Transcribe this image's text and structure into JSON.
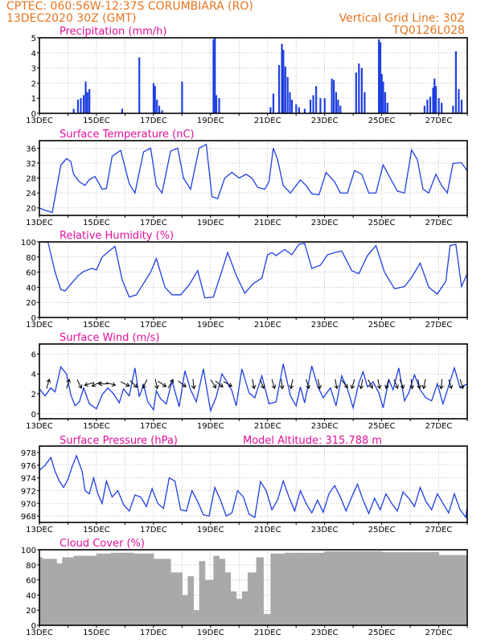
{
  "header": {
    "line1_left": "CPTEC:  060:56W-12:37S  CORUMBIARA (RO)",
    "line2_left": "13DEC2020 30Z (GMT)",
    "line1_right": "Vertical Grid Line: 30Z",
    "line2_right": "TQ0126L028"
  },
  "colors": {
    "header": "#e8741e",
    "title": "#e0109a",
    "series": "#1f3fe0",
    "cloud": "#a9a9a9",
    "grid": "#999999"
  },
  "date_ticks": [
    "13DEC",
    "15DEC",
    "17DEC",
    "19DEC",
    "21DEC",
    "23DEC",
    "25DEC",
    "27DEC"
  ],
  "chart_data": [
    {
      "id": "precip",
      "type": "bar",
      "title": "Precipitation  (mm/h)",
      "ylim": [
        0,
        5
      ],
      "yticks": [
        "0",
        "1",
        "2",
        "3",
        "4",
        "5"
      ],
      "xlim_days": [
        0,
        15
      ],
      "bars": [
        [
          1.2,
          0.3
        ],
        [
          1.35,
          0.9
        ],
        [
          1.45,
          1.0
        ],
        [
          1.55,
          1.2
        ],
        [
          1.62,
          2.1
        ],
        [
          1.68,
          1.4
        ],
        [
          1.75,
          1.6
        ],
        [
          2.9,
          0.3
        ],
        [
          3.5,
          3.7
        ],
        [
          4.0,
          2.0
        ],
        [
          4.05,
          1.8
        ],
        [
          4.12,
          0.9
        ],
        [
          4.2,
          0.5
        ],
        [
          4.3,
          0.2
        ],
        [
          5.0,
          2.1
        ],
        [
          6.1,
          4.9
        ],
        [
          6.15,
          5.0
        ],
        [
          6.2,
          1.2
        ],
        [
          6.3,
          1.0
        ],
        [
          8.1,
          0.4
        ],
        [
          8.2,
          1.3
        ],
        [
          8.4,
          3.2
        ],
        [
          8.5,
          4.6
        ],
        [
          8.55,
          4.2
        ],
        [
          8.62,
          3.1
        ],
        [
          8.7,
          2.4
        ],
        [
          8.78,
          1.4
        ],
        [
          8.85,
          0.9
        ],
        [
          9.0,
          0.6
        ],
        [
          9.1,
          0.4
        ],
        [
          9.3,
          0.3
        ],
        [
          9.5,
          0.9
        ],
        [
          9.6,
          1.2
        ],
        [
          9.7,
          1.8
        ],
        [
          9.85,
          1.0
        ],
        [
          10.0,
          1.0
        ],
        [
          10.25,
          2.3
        ],
        [
          10.32,
          2.2
        ],
        [
          10.4,
          1.4
        ],
        [
          10.47,
          0.9
        ],
        [
          10.55,
          0.5
        ],
        [
          11.1,
          2.7
        ],
        [
          11.2,
          3.3
        ],
        [
          11.3,
          3.0
        ],
        [
          11.4,
          1.4
        ],
        [
          11.9,
          4.9
        ],
        [
          11.95,
          4.7
        ],
        [
          12.0,
          2.6
        ],
        [
          12.05,
          2.1
        ],
        [
          12.12,
          1.4
        ],
        [
          12.2,
          0.7
        ],
        [
          13.5,
          0.5
        ],
        [
          13.6,
          0.9
        ],
        [
          13.7,
          1.1
        ],
        [
          13.8,
          1.7
        ],
        [
          13.85,
          2.3
        ],
        [
          13.9,
          1.8
        ],
        [
          14.0,
          1.0
        ],
        [
          14.1,
          0.7
        ],
        [
          14.5,
          0.5
        ],
        [
          14.6,
          4.1
        ],
        [
          14.7,
          1.6
        ],
        [
          14.8,
          0.9
        ]
      ]
    },
    {
      "id": "temp",
      "type": "line",
      "title": "Surface Temperature (nC)",
      "ylim": [
        18,
        38
      ],
      "yticks": [
        "20",
        "24",
        "28",
        "32",
        "36"
      ],
      "ytick_values": [
        20,
        24,
        28,
        32,
        36
      ],
      "x": [
        0,
        0.15,
        0.45,
        0.75,
        0.95,
        1.1,
        1.2,
        1.4,
        1.6,
        1.75,
        1.95,
        2.2,
        2.35,
        2.55,
        2.85,
        3.15,
        3.35,
        3.65,
        3.9,
        4.1,
        4.3,
        4.6,
        4.85,
        5.05,
        5.3,
        5.6,
        5.85,
        6.05,
        6.25,
        6.5,
        6.75,
        7.0,
        7.25,
        7.45,
        7.65,
        7.9,
        8.05,
        8.2,
        8.35,
        8.55,
        8.8,
        9.15,
        9.35,
        9.55,
        9.8,
        10.05,
        10.35,
        10.55,
        10.8,
        11.05,
        11.3,
        11.55,
        11.8,
        12.05,
        12.3,
        12.55,
        12.8,
        13.05,
        13.25,
        13.45,
        13.65,
        13.9,
        14.1,
        14.3,
        14.5,
        14.8,
        15.0
      ],
      "y": [
        20,
        19.5,
        18.8,
        31.4,
        33.2,
        32.4,
        29.0,
        27.0,
        26.0,
        27.6,
        28.4,
        25.0,
        25.2,
        33.8,
        35.4,
        26.5,
        24.0,
        35.0,
        36.0,
        26.0,
        24.0,
        35.2,
        36.0,
        28.0,
        25.0,
        36.0,
        37.0,
        23.0,
        22.5,
        28.0,
        29.5,
        28.0,
        29.0,
        28.0,
        25.5,
        25.0,
        27.0,
        36.0,
        33.0,
        26.0,
        24.0,
        27.5,
        26.0,
        23.8,
        23.5,
        29.5,
        27.0,
        24.0,
        24.0,
        30.0,
        29.0,
        24.0,
        24.0,
        31.5,
        28.0,
        24.5,
        24.0,
        35.5,
        33.0,
        25.0,
        24.0,
        29.0,
        26.0,
        24.0,
        31.9,
        32.1,
        29.9
      ]
    },
    {
      "id": "rh",
      "type": "line",
      "title": "Relative Humidity (%)",
      "ylim": [
        0,
        100
      ],
      "yticks": [
        "0",
        "20",
        "40",
        "60",
        "80",
        "100"
      ],
      "ytick_values": [
        0,
        20,
        40,
        60,
        80,
        100
      ],
      "x": [
        0,
        0.3,
        0.55,
        0.75,
        0.9,
        1.1,
        1.35,
        1.55,
        1.85,
        2.0,
        2.2,
        2.45,
        2.65,
        2.9,
        3.15,
        3.4,
        3.65,
        3.9,
        4.1,
        4.4,
        4.65,
        4.95,
        5.25,
        5.55,
        5.8,
        6.1,
        6.4,
        6.6,
        6.9,
        7.2,
        7.5,
        7.8,
        8.0,
        8.15,
        8.3,
        8.6,
        8.85,
        9.1,
        9.3,
        9.55,
        9.85,
        10.1,
        10.35,
        10.6,
        10.95,
        11.2,
        11.5,
        11.8,
        12.1,
        12.45,
        12.8,
        13.05,
        13.35,
        13.65,
        13.95,
        14.25,
        14.4,
        14.6,
        14.8,
        15.0
      ],
      "y": [
        100,
        100,
        60,
        37,
        35,
        44,
        55,
        61,
        65,
        63,
        80,
        88,
        94,
        50,
        27,
        30,
        45,
        60,
        78,
        40,
        30,
        30,
        43,
        62,
        26,
        27,
        62,
        86,
        56,
        32,
        45,
        52,
        83,
        86,
        82,
        90,
        83,
        97,
        98,
        65,
        69,
        83,
        86,
        88,
        62,
        58,
        82,
        95,
        60,
        38,
        41,
        53,
        72,
        40,
        31,
        48,
        95,
        97,
        41,
        58
      ]
    },
    {
      "id": "wind",
      "type": "line",
      "title": "Surface Wind (m/s)",
      "ylim": [
        -0.5,
        7
      ],
      "yticks": [
        "0",
        "2",
        "4",
        "6"
      ],
      "ytick_values": [
        0,
        2,
        4,
        6
      ],
      "x": [
        0,
        0.2,
        0.4,
        0.55,
        0.75,
        0.95,
        1.1,
        1.25,
        1.4,
        1.55,
        1.75,
        2.0,
        2.2,
        2.4,
        2.6,
        2.8,
        2.95,
        3.15,
        3.35,
        3.5,
        3.65,
        3.8,
        4.0,
        4.1,
        4.25,
        4.45,
        4.65,
        4.9,
        5.1,
        5.3,
        5.5,
        5.75,
        6.0,
        6.2,
        6.4,
        6.6,
        6.75,
        6.9,
        7.1,
        7.35,
        7.55,
        7.8,
        8.05,
        8.3,
        8.55,
        8.8,
        9.0,
        9.15,
        9.3,
        9.55,
        9.75,
        9.95,
        10.2,
        10.4,
        10.6,
        10.8,
        11.0,
        11.2,
        11.35,
        11.5,
        11.7,
        11.9,
        12.05,
        12.25,
        12.4,
        12.6,
        12.8,
        12.95,
        13.15,
        13.35,
        13.55,
        13.75,
        13.95,
        14.15,
        14.35,
        14.55,
        14.75,
        15.0
      ],
      "y": [
        2.5,
        1.8,
        2.6,
        2.2,
        4.7,
        4.0,
        1.9,
        0.8,
        1.2,
        2.6,
        1.0,
        0.5,
        1.9,
        2.6,
        2.0,
        1.1,
        2.5,
        1.8,
        4.6,
        1.7,
        2.9,
        1.2,
        0.4,
        2.3,
        1.5,
        1.0,
        3.3,
        0.7,
        4.3,
        2.4,
        1.2,
        4.5,
        0.3,
        1.7,
        4.0,
        3.1,
        2.3,
        0.8,
        4.5,
        2.1,
        1.6,
        3.8,
        1.0,
        1.2,
        5.0,
        1.8,
        0.8,
        2.7,
        1.1,
        4.8,
        2.8,
        1.6,
        2.6,
        0.8,
        3.8,
        2.5,
        0.6,
        3.1,
        4.2,
        2.7,
        3.2,
        2.1,
        0.6,
        3.4,
        2.4,
        4.6,
        1.3,
        2.1,
        3.9,
        2.4,
        1.6,
        1.3,
        3.0,
        1.0,
        2.8,
        4.6,
        2.6,
        3.0
      ]
    },
    {
      "id": "pressure",
      "type": "line",
      "title": "Surface Pressure (hPa)",
      "subtitle": "Model Altitude: 315.788 m",
      "ylim": [
        967,
        979
      ],
      "yticks": [
        "968",
        "970",
        "972",
        "974",
        "976",
        "978"
      ],
      "ytick_values": [
        968,
        970,
        972,
        974,
        976,
        978
      ],
      "x": [
        0,
        0.2,
        0.4,
        0.55,
        0.7,
        0.85,
        1.0,
        1.15,
        1.3,
        1.5,
        1.6,
        1.75,
        1.9,
        2.05,
        2.2,
        2.35,
        2.55,
        2.75,
        2.95,
        3.15,
        3.35,
        3.55,
        3.75,
        3.95,
        4.15,
        4.35,
        4.55,
        4.75,
        4.95,
        5.15,
        5.35,
        5.55,
        5.75,
        5.95,
        6.15,
        6.35,
        6.55,
        6.75,
        6.95,
        7.15,
        7.35,
        7.55,
        7.75,
        7.95,
        8.15,
        8.35,
        8.55,
        8.75,
        8.95,
        9.15,
        9.35,
        9.55,
        9.75,
        9.95,
        10.15,
        10.35,
        10.55,
        10.75,
        10.95,
        11.15,
        11.35,
        11.55,
        11.75,
        11.95,
        12.15,
        12.35,
        12.55,
        12.75,
        12.95,
        13.15,
        13.35,
        13.55,
        13.75,
        13.95,
        14.15,
        14.35,
        14.55,
        14.75,
        14.95,
        15.0
      ],
      "y": [
        975.2,
        976.0,
        977.2,
        975.0,
        973.5,
        972.5,
        973.8,
        975.8,
        977.5,
        975.0,
        972.0,
        971.5,
        974.0,
        971.5,
        970.0,
        973.5,
        971.0,
        972.0,
        969.8,
        968.8,
        971.3,
        971.0,
        969.5,
        972.3,
        970.0,
        969.2,
        974.0,
        973.5,
        969.0,
        968.8,
        972.0,
        970.3,
        968.2,
        968.0,
        972.5,
        970.5,
        968.0,
        968.5,
        972.0,
        971.0,
        968.3,
        967.8,
        973.4,
        972.0,
        969.0,
        970.5,
        973.5,
        971.0,
        968.8,
        972.0,
        970.0,
        968.5,
        970.5,
        968.6,
        971.5,
        972.8,
        971.0,
        968.8,
        971.0,
        973.0,
        970.5,
        968.4,
        970.8,
        969.0,
        971.5,
        970.0,
        968.8,
        971.8,
        970.8,
        969.5,
        972.5,
        970.3,
        969.0,
        971.5,
        970.0,
        968.5,
        971.5,
        969.0,
        967.8,
        969.5
      ]
    },
    {
      "id": "cloud",
      "type": "bar",
      "title": "Cloud Cover (%)",
      "ylim": [
        0,
        100
      ],
      "yticks": [
        "0",
        "20",
        "40",
        "60",
        "80",
        "100"
      ],
      "ytick_values": [
        0,
        20,
        40,
        60,
        80,
        100
      ],
      "segments": [
        [
          0,
          0.1,
          90
        ],
        [
          0.1,
          0.6,
          88
        ],
        [
          0.6,
          0.8,
          82
        ],
        [
          0.8,
          1.2,
          90
        ],
        [
          1.2,
          2.0,
          92
        ],
        [
          2.0,
          2.5,
          95
        ],
        [
          2.5,
          3.3,
          96
        ],
        [
          3.3,
          4.0,
          95
        ],
        [
          4.0,
          4.6,
          88
        ],
        [
          4.6,
          5.0,
          70
        ],
        [
          5.0,
          5.2,
          40
        ],
        [
          5.2,
          5.4,
          65
        ],
        [
          5.4,
          5.6,
          20
        ],
        [
          5.6,
          5.8,
          85
        ],
        [
          5.8,
          6.1,
          60
        ],
        [
          6.1,
          6.3,
          92
        ],
        [
          6.3,
          6.5,
          88
        ],
        [
          6.5,
          6.7,
          70
        ],
        [
          6.7,
          6.9,
          45
        ],
        [
          6.9,
          7.1,
          35
        ],
        [
          7.1,
          7.3,
          45
        ],
        [
          7.3,
          7.6,
          70
        ],
        [
          7.6,
          7.85,
          90
        ],
        [
          7.85,
          8.1,
          15
        ],
        [
          8.1,
          8.6,
          95
        ],
        [
          8.6,
          10.0,
          96
        ],
        [
          10.0,
          12.0,
          98
        ],
        [
          12.0,
          14.0,
          97
        ],
        [
          14.0,
          15.0,
          93
        ]
      ]
    }
  ],
  "wind_arrows": [
    {
      "x": 0.3,
      "dx": 0.3,
      "dy": -1
    },
    {
      "x": 1.0,
      "dx": 0.3,
      "dy": -1
    },
    {
      "x": 1.4,
      "dx": 0.5,
      "dy": 1
    },
    {
      "x": 1.75,
      "dx": -1,
      "dy": 0.3
    },
    {
      "x": 2.0,
      "dx": -1,
      "dy": 0.5
    },
    {
      "x": 2.25,
      "dx": -1,
      "dy": 0
    },
    {
      "x": 2.5,
      "dx": 1,
      "dy": 0.3
    },
    {
      "x": 3.0,
      "dx": 1,
      "dy": 0.5
    },
    {
      "x": 3.3,
      "dx": 0.8,
      "dy": 0.8
    },
    {
      "x": 3.7,
      "dx": -0.5,
      "dy": 1
    },
    {
      "x": 4.1,
      "dx": 0.2,
      "dy": 1
    },
    {
      "x": 4.3,
      "dx": 0.9,
      "dy": 0.6
    },
    {
      "x": 4.6,
      "dx": 0.6,
      "dy": -1
    },
    {
      "x": 5.0,
      "dx": 0.8,
      "dy": 0.6
    },
    {
      "x": 5.4,
      "dx": 0.1,
      "dy": 1
    },
    {
      "x": 6.1,
      "dx": 0.6,
      "dy": 1
    },
    {
      "x": 6.3,
      "dx": 1,
      "dy": 0.8
    },
    {
      "x": 6.6,
      "dx": 1,
      "dy": 0.6
    },
    {
      "x": 7.5,
      "dx": 0.2,
      "dy": 1
    },
    {
      "x": 7.8,
      "dx": 0.4,
      "dy": 1
    },
    {
      "x": 8.2,
      "dx": 0.3,
      "dy": 1
    },
    {
      "x": 8.5,
      "dx": 0.1,
      "dy": 1
    },
    {
      "x": 8.85,
      "dx": -0.2,
      "dy": 1
    },
    {
      "x": 9.4,
      "dx": 0.3,
      "dy": 1
    },
    {
      "x": 9.8,
      "dx": 0.2,
      "dy": 1
    },
    {
      "x": 10.4,
      "dx": 0.2,
      "dy": 1
    },
    {
      "x": 10.7,
      "dx": 0.6,
      "dy": 0.8
    },
    {
      "x": 11.0,
      "dx": -0.3,
      "dy": 1
    },
    {
      "x": 11.3,
      "dx": -0.2,
      "dy": 1
    },
    {
      "x": 11.6,
      "dx": 0.5,
      "dy": 1
    },
    {
      "x": 11.9,
      "dx": 0.2,
      "dy": 1
    },
    {
      "x": 12.2,
      "dx": -0.3,
      "dy": 1
    },
    {
      "x": 12.5,
      "dx": 0.4,
      "dy": 1
    },
    {
      "x": 12.7,
      "dx": 0.4,
      "dy": 1
    },
    {
      "x": 13.05,
      "dx": 0.1,
      "dy": 1
    },
    {
      "x": 13.3,
      "dx": 0.2,
      "dy": 1
    },
    {
      "x": 13.5,
      "dx": -0.2,
      "dy": 1
    },
    {
      "x": 14.1,
      "dx": -0.1,
      "dy": 1
    },
    {
      "x": 14.4,
      "dx": 0.3,
      "dy": 1
    },
    {
      "x": 14.8,
      "dx": 0.3,
      "dy": 1
    }
  ]
}
